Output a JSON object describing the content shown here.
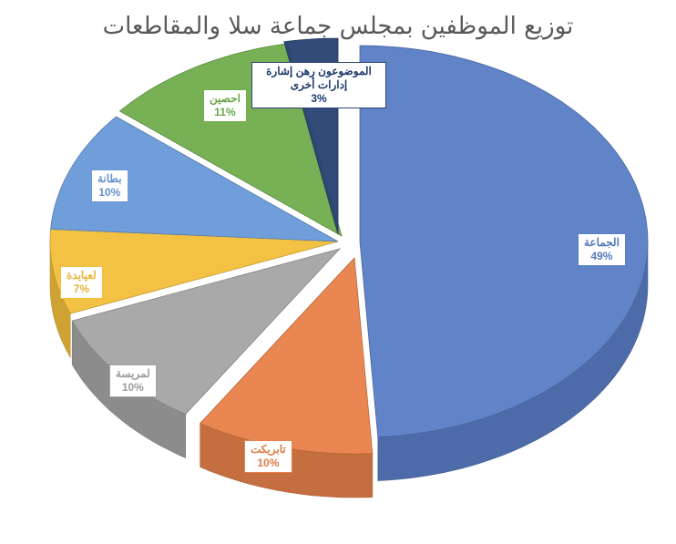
{
  "chart_data": {
    "type": "pie",
    "title": "توزيع الموظفين بمجلس جماعة سلا والمقاطعات",
    "slices": [
      {
        "label": "الجماعة",
        "percent_label": "49%",
        "value": 49,
        "color": "#5b7ec6"
      },
      {
        "label": "تابريكت",
        "percent_label": "10%",
        "value": 10,
        "color": "#e8814a"
      },
      {
        "label": "لمريسة",
        "percent_label": "10%",
        "value": 10,
        "color": "#a5a5a5"
      },
      {
        "label": "لعيايدة",
        "percent_label": "7%",
        "value": 7,
        "color": "#f2bf3c"
      },
      {
        "label": "بطانة",
        "percent_label": "10%",
        "value": 10,
        "color": "#6a9ad8"
      },
      {
        "label": "احصين",
        "percent_label": "11%",
        "value": 11,
        "color": "#72ad4e"
      },
      {
        "label": "الموضوعون رهن إشارة إدارات أخرى",
        "percent_label": "3%",
        "value": 3,
        "color": "#2b4472"
      }
    ],
    "legend": "none",
    "style": "3d-exploded"
  }
}
